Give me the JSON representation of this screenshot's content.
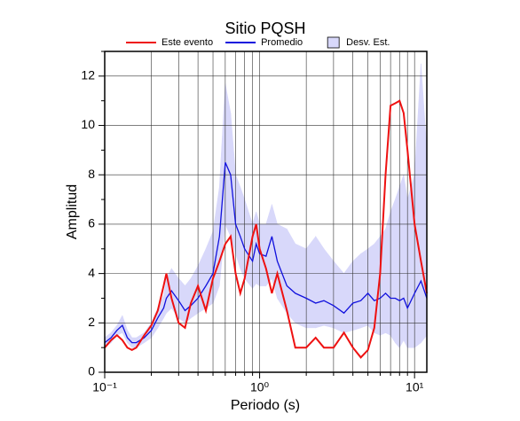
{
  "chart_data": {
    "type": "line",
    "title": "Sitio PQSH",
    "xlabel": "Periodo (s)",
    "ylabel": "Amplitud",
    "x": [
      0.1,
      0.11,
      0.12,
      0.13,
      0.14,
      0.15,
      0.16,
      0.18,
      0.2,
      0.22,
      0.24,
      0.25,
      0.27,
      0.3,
      0.33,
      0.36,
      0.4,
      0.45,
      0.5,
      0.55,
      0.6,
      0.65,
      0.7,
      0.75,
      0.8,
      0.9,
      0.95,
      1.0,
      1.1,
      1.2,
      1.3,
      1.5,
      1.7,
      2,
      2.3,
      2.6,
      3,
      3.5,
      4,
      4.5,
      5,
      5.5,
      6,
      6.5,
      7,
      7.5,
      8,
      8.5,
      9,
      10,
      11,
      12
    ],
    "series": [
      {
        "name": "Este evento",
        "color": "#ee1111",
        "values": [
          1.0,
          1.3,
          1.5,
          1.3,
          1.0,
          0.9,
          1.0,
          1.5,
          1.9,
          2.5,
          3.5,
          4.0,
          3.0,
          2.0,
          1.8,
          2.8,
          3.5,
          2.5,
          3.8,
          4.5,
          5.2,
          5.5,
          4.0,
          3.2,
          3.8,
          5.5,
          6.0,
          5.0,
          4.2,
          3.2,
          4.0,
          2.5,
          1.0,
          1.0,
          1.4,
          1.0,
          1.0,
          1.6,
          1.0,
          0.6,
          0.9,
          1.8,
          4.0,
          8.0,
          10.8,
          10.9,
          11.0,
          10.5,
          9.0,
          6.0,
          4.5,
          3.2
        ]
      },
      {
        "name": "Promedio",
        "color": "#1111dd",
        "values": [
          1.2,
          1.4,
          1.7,
          1.9,
          1.4,
          1.2,
          1.2,
          1.4,
          1.7,
          2.2,
          2.6,
          3.0,
          3.3,
          2.9,
          2.5,
          2.7,
          3.0,
          3.5,
          4.0,
          5.5,
          8.5,
          8.0,
          6.0,
          5.5,
          5.0,
          4.5,
          5.2,
          4.8,
          4.7,
          5.5,
          4.5,
          3.5,
          3.2,
          3.0,
          2.8,
          2.9,
          2.7,
          2.4,
          2.8,
          2.9,
          3.2,
          2.9,
          3.0,
          3.2,
          3.0,
          3.0,
          2.9,
          3.0,
          2.6,
          3.2,
          3.7,
          3.0
        ]
      }
    ],
    "band": {
      "name": "Desv. Est.",
      "color": "#d8d8fa",
      "upper": [
        1.4,
        1.6,
        1.9,
        2.3,
        1.7,
        1.4,
        1.4,
        1.6,
        2.0,
        2.6,
        3.1,
        3.8,
        4.2,
        3.8,
        3.5,
        3.8,
        4.3,
        5.0,
        5.7,
        7.5,
        11.7,
        10.5,
        8.0,
        7.5,
        7.0,
        6.0,
        6.5,
        6.0,
        6.0,
        6.8,
        6.0,
        5.8,
        5.2,
        5.0,
        5.5,
        5.0,
        4.5,
        4.0,
        4.5,
        4.8,
        5.0,
        5.2,
        5.5,
        5.8,
        6.5,
        7.0,
        7.5,
        8.0,
        7.0,
        8.0,
        12.5,
        9.0
      ],
      "lower": [
        1.0,
        1.2,
        1.5,
        1.6,
        1.2,
        1.0,
        1.0,
        1.2,
        1.4,
        1.8,
        2.2,
        2.4,
        2.6,
        2.2,
        2.0,
        2.2,
        2.4,
        2.6,
        2.8,
        3.5,
        6.0,
        5.5,
        4.8,
        4.2,
        3.8,
        3.4,
        3.6,
        3.5,
        3.5,
        3.8,
        3.0,
        2.4,
        2.0,
        1.8,
        1.8,
        1.9,
        1.8,
        1.6,
        1.7,
        1.8,
        1.9,
        1.6,
        1.5,
        1.6,
        1.5,
        1.2,
        1.0,
        1.3,
        1.0,
        1.0,
        1.2,
        1.5
      ]
    },
    "xscale": "log",
    "xlim": [
      0.1,
      12
    ],
    "ylim": [
      0,
      13
    ],
    "xticks": [
      {
        "value": 0.1,
        "label": "10⁻¹"
      },
      {
        "value": 1,
        "label": "10⁰"
      },
      {
        "value": 10,
        "label": "10¹"
      }
    ],
    "xminor": [
      0.2,
      0.3,
      0.4,
      0.5,
      0.6,
      0.7,
      0.8,
      0.9,
      2,
      3,
      4,
      5,
      6,
      7,
      8,
      9
    ],
    "yticks": [
      0,
      2,
      4,
      6,
      8,
      10,
      12
    ],
    "yminor": [
      1,
      3,
      5,
      7,
      9,
      11,
      13
    ],
    "grid": true,
    "legend": "top"
  }
}
